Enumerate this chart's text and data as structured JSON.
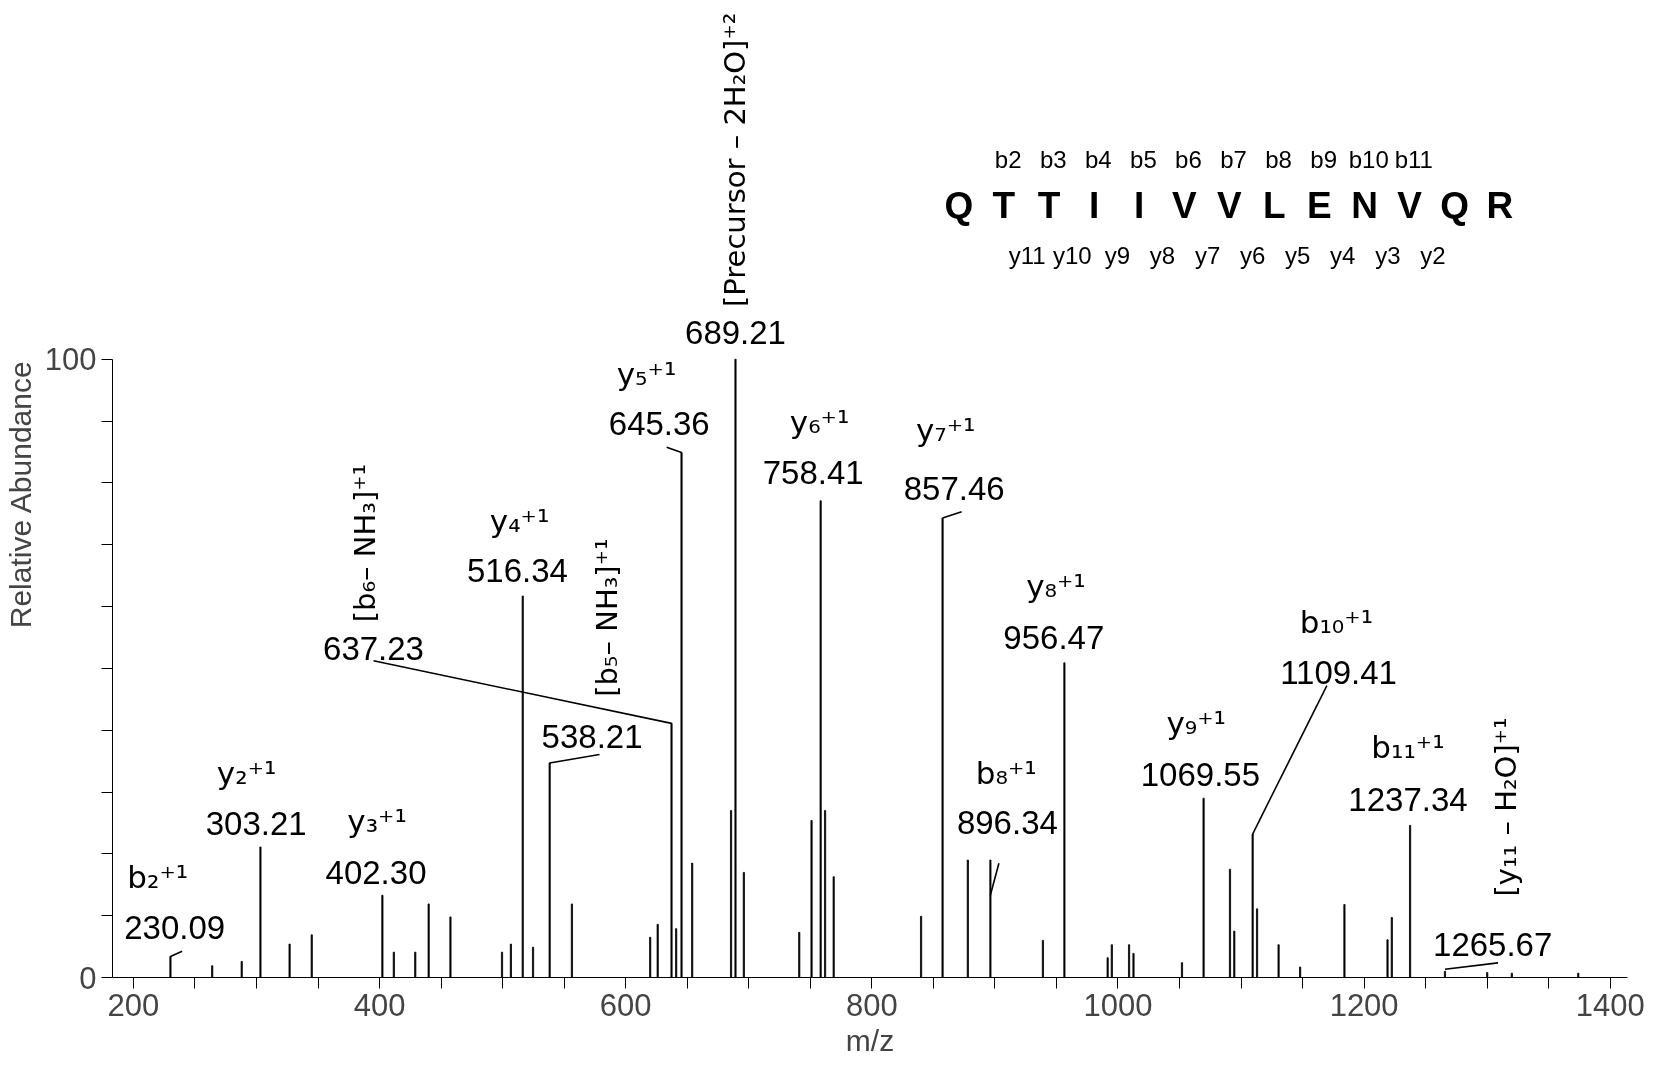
{
  "chart_data": {
    "type": "bar",
    "xlabel": "m/z",
    "ylabel": "Relative Abundance",
    "color": "#000000",
    "x": [
      230.09,
      264,
      288,
      303.21,
      326.9,
      344.9,
      402.3,
      411.6,
      429,
      439.9,
      457.6,
      499.5,
      506.7,
      516.34,
      524.7,
      538.21,
      556.3,
      619.9,
      626,
      637.23,
      641,
      645.36,
      654,
      685.6,
      689.21,
      696,
      741,
      751,
      758.41,
      762,
      769,
      840,
      857.46,
      878,
      896.34,
      939,
      956.47,
      991.6,
      995,
      1009,
      1012.6,
      1052,
      1069.55,
      1091,
      1094.5,
      1109.41,
      1113,
      1130.5,
      1148,
      1184,
      1219,
      1222.5,
      1237.34,
      1265.67,
      1300,
      1320,
      1374
    ],
    "values": [
      3.4,
      1.9,
      2.6,
      21.1,
      5.4,
      6.9,
      13.3,
      4.1,
      4.1,
      11.9,
      9.8,
      4.1,
      5.4,
      61.7,
      4.9,
      34.7,
      11.9,
      6.5,
      8.6,
      41.1,
      7.9,
      84.9,
      18.5,
      27,
      100,
      17,
      7.3,
      25.4,
      77.1,
      27,
      16.3,
      9.9,
      74.3,
      19,
      19,
      6,
      50.9,
      3.2,
      5.3,
      5.3,
      3.9,
      2.4,
      29,
      17.5,
      7.5,
      23.2,
      11.1,
      5.3,
      1.7,
      11.8,
      6.1,
      9.7,
      24.6,
      1,
      0.8,
      0.7,
      0.7
    ],
    "xlim": [
      183,
      1414
    ],
    "ylim": [
      0,
      100
    ],
    "xticks": [
      200,
      {
        "value": 250,
        "label": null
      },
      400,
      {
        "value": 300,
        "label": null
      },
      {
        "value": 350,
        "label": null
      },
      {
        "value": 450,
        "label": null
      },
      {
        "value": 500,
        "label": null
      },
      {
        "value": 550,
        "label": null
      },
      600,
      {
        "value": 650,
        "label": null
      },
      {
        "value": 700,
        "label": null
      },
      {
        "value": 750,
        "label": null
      },
      800,
      {
        "value": 850,
        "label": null
      },
      {
        "value": 900,
        "label": null
      },
      {
        "value": 950,
        "label": null
      },
      1000,
      {
        "value": 1050,
        "label": null
      },
      {
        "value": 1100,
        "label": null
      },
      {
        "value": 1150,
        "label": null
      },
      1200,
      {
        "value": 1250,
        "label": null
      },
      {
        "value": 1300,
        "label": null
      },
      {
        "value": 1350,
        "label": null
      },
      1400
    ],
    "yticks": [
      0,
      {
        "value": 10,
        "label": null
      },
      {
        "value": 20,
        "label": null
      },
      {
        "value": 30,
        "label": null
      },
      {
        "value": 40,
        "label": null
      },
      {
        "value": 50,
        "label": null
      },
      {
        "value": 60,
        "label": null
      },
      {
        "value": 70,
        "label": null
      },
      {
        "value": 80,
        "label": null
      },
      {
        "value": 90,
        "label": null
      },
      100
    ],
    "annotations": [
      {
        "text": "b₂⁺¹",
        "x": 230.09,
        "y": 3.4
      },
      {
        "text": "230.09",
        "x": 230.09,
        "y": 3.4
      },
      {
        "text": "y₂⁺¹",
        "x": 303.21,
        "y": 21.1
      },
      {
        "text": "303.21",
        "x": 303.21,
        "y": 21.1
      },
      {
        "text": "y₃⁺¹",
        "x": 402.3,
        "y": 13.3
      },
      {
        "text": "402.30",
        "x": 402.3,
        "y": 13.3
      },
      {
        "text": "y₄⁺¹",
        "x": 516.34,
        "y": 61.7
      },
      {
        "text": "516.34",
        "x": 516.34,
        "y": 61.7
      },
      {
        "text": "[b₅– NH₃]⁺¹",
        "x": 538.21,
        "y": 34.7
      },
      {
        "text": "538.21",
        "x": 538.21,
        "y": 34.7
      },
      "[b₆– NH₃]⁺¹",
      {
        "text": "637.23",
        "x": 637.23,
        "y": 41.1
      },
      {
        "text": "y₅⁺¹",
        "x": 645.36,
        "y": 84.9
      },
      {
        "text": "645.36",
        "x": 645.36,
        "y": 84.9
      },
      {
        "text": "[Precursor – 2H₂O]⁺²",
        "x": 689.21,
        "y": 100
      },
      {
        "text": "689.21",
        "x": 689.21,
        "y": 100
      },
      {
        "text": "y₆⁺¹",
        "x": 758.41,
        "y": 77.1
      },
      {
        "text": "758.41",
        "x": 758.41,
        "y": 77.1
      },
      {
        "text": "y₇⁺¹",
        "x": 857.46,
        "y": 74.3
      },
      {
        "text": "857.46",
        "x": 857.46,
        "y": 74.3
      },
      {
        "text": "b₈⁺¹",
        "x": 896.34,
        "y": 19
      },
      {
        "text": "896.34",
        "x": 896.34,
        "y": 19
      },
      {
        "text": "y₈⁺¹",
        "x": 956.47,
        "y": 50.9
      },
      {
        "text": "956.47",
        "x": 956.47,
        "y": 50.9
      },
      {
        "text": "y₉⁺¹",
        "x": 1069.55,
        "y": 29
      },
      {
        "text": "1069.55",
        "x": 1069.55,
        "y": 29
      },
      "b₁₀⁺¹",
      {
        "text": "1109.41",
        "x": 1109.41,
        "y": 23.2
      },
      {
        "text": "b₁₁⁺¹",
        "x": 1237.34,
        "y": 24.6
      },
      {
        "text": "1237.34",
        "x": 1237.34,
        "y": 24.6
      },
      "[y₁₁ – H₂O]⁺¹",
      {
        "text": "1265.67",
        "x": 1265.67,
        "y": 1
      },
      "b2 b3 b4 b5 b6 b7 b8 b9 b10 b11",
      "Q T T I I V V L E N V Q R",
      "y11 y10 y9 y8 y7 y6 y5 y4 y3 y2"
    ]
  }
}
